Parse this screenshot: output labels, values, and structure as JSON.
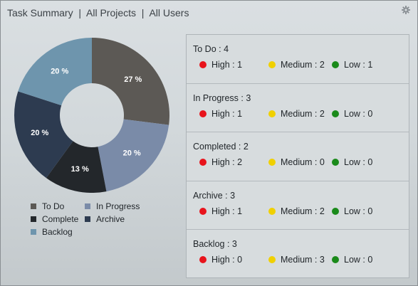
{
  "header": {
    "title": "Task Summary  |  All Projects  |  All Users"
  },
  "colors": {
    "todo": "#5c5955",
    "in_progress": "#7a8ba8",
    "complete": "#23272b",
    "archive": "#2d3b50",
    "backlog": "#6e95ad",
    "high": "#e8141c",
    "medium": "#f0d000",
    "low": "#1a8a1a"
  },
  "chart_data": {
    "type": "pie",
    "donut": true,
    "categories": [
      "To Do",
      "In Progress",
      "Complete",
      "Archive",
      "Backlog"
    ],
    "values": [
      27,
      20,
      13,
      20,
      20
    ],
    "value_labels": [
      "27 %",
      "20 %",
      "13 %",
      "20 %",
      "20 %"
    ],
    "legend_position": "bottom"
  },
  "legend": {
    "items": [
      "To Do",
      "In Progress",
      "Complete",
      "Archive",
      "Backlog"
    ]
  },
  "summary": {
    "cards": [
      {
        "title": "To Do : 4",
        "high": "High : 1",
        "medium": "Medium : 2",
        "low": "Low : 1"
      },
      {
        "title": "In Progress : 3",
        "high": "High : 1",
        "medium": "Medium : 2",
        "low": "Low : 0"
      },
      {
        "title": "Completed : 2",
        "high": "High : 2",
        "medium": "Medium : 0",
        "low": "Low : 0"
      },
      {
        "title": "Archive : 3",
        "high": "High : 1",
        "medium": "Medium : 2",
        "low": "Low : 0"
      },
      {
        "title": "Backlog : 3",
        "high": "High : 0",
        "medium": "Medium : 3",
        "low": "Low : 0"
      }
    ]
  }
}
